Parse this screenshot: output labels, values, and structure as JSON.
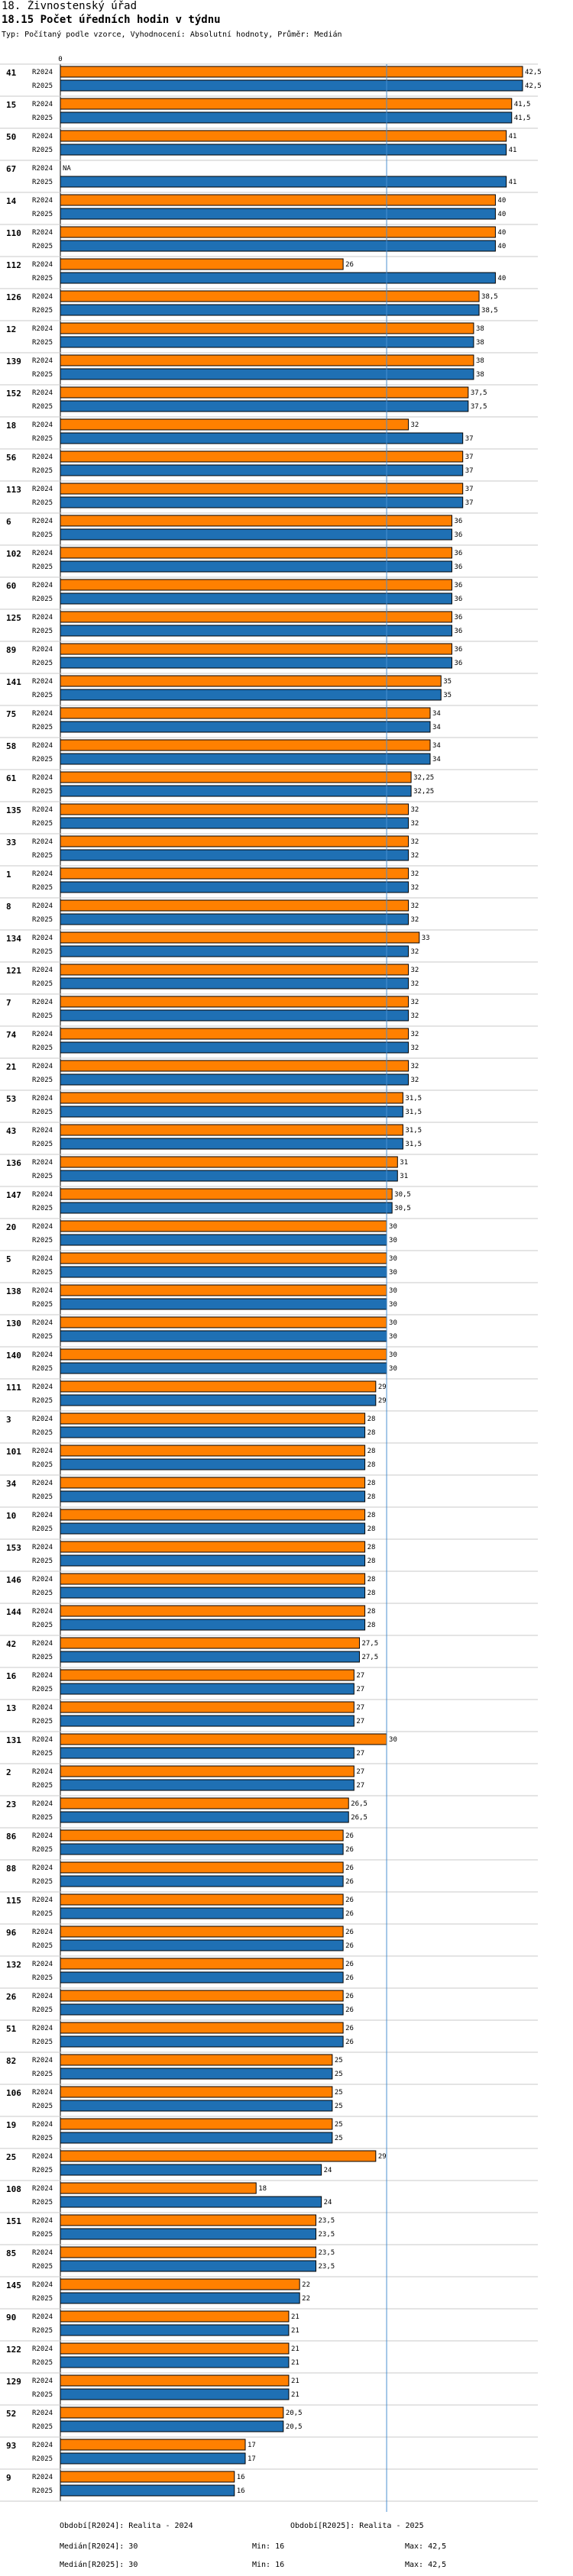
{
  "header": {
    "title": "18. Živnostenský úřad",
    "subtitle": "18.15 Počet úředních hodin v týdnu",
    "settings": "Typ: Počítaný podle vzorce, Vyhodnocení: Absolutní hodnoty, Průměr: Medián"
  },
  "chart_data": {
    "type": "bar",
    "orientation": "horizontal",
    "x_tick_labels": [
      "0"
    ],
    "xlim": [
      0,
      42.5
    ],
    "reference_line": {
      "label": "Medián",
      "value": 30
    },
    "series": [
      {
        "name": "R2024",
        "color": "#ff8000"
      },
      {
        "name": "R2025",
        "color": "#1f70b4"
      }
    ],
    "categories": [
      {
        "id": "41",
        "values": [
          42.5,
          42.5
        ],
        "labels": [
          "42,5",
          "42,5"
        ]
      },
      {
        "id": "15",
        "values": [
          41.5,
          41.5
        ],
        "labels": [
          "41,5",
          "41,5"
        ]
      },
      {
        "id": "50",
        "values": [
          41,
          41
        ],
        "labels": [
          "41",
          "41"
        ]
      },
      {
        "id": "67",
        "values": [
          null,
          41
        ],
        "labels": [
          "NA",
          "41"
        ]
      },
      {
        "id": "14",
        "values": [
          40,
          40
        ],
        "labels": [
          "40",
          "40"
        ]
      },
      {
        "id": "110",
        "values": [
          40,
          40
        ],
        "labels": [
          "40",
          "40"
        ]
      },
      {
        "id": "112",
        "values": [
          26,
          40
        ],
        "labels": [
          "26",
          "40"
        ]
      },
      {
        "id": "126",
        "values": [
          38.5,
          38.5
        ],
        "labels": [
          "38,5",
          "38,5"
        ]
      },
      {
        "id": "12",
        "values": [
          38,
          38
        ],
        "labels": [
          "38",
          "38"
        ]
      },
      {
        "id": "139",
        "values": [
          38,
          38
        ],
        "labels": [
          "38",
          "38"
        ]
      },
      {
        "id": "152",
        "values": [
          37.5,
          37.5
        ],
        "labels": [
          "37,5",
          "37,5"
        ]
      },
      {
        "id": "18",
        "values": [
          32,
          37
        ],
        "labels": [
          "32",
          "37"
        ]
      },
      {
        "id": "56",
        "values": [
          37,
          37
        ],
        "labels": [
          "37",
          "37"
        ]
      },
      {
        "id": "113",
        "values": [
          37,
          37
        ],
        "labels": [
          "37",
          "37"
        ]
      },
      {
        "id": "6",
        "values": [
          36,
          36
        ],
        "labels": [
          "36",
          "36"
        ]
      },
      {
        "id": "102",
        "values": [
          36,
          36
        ],
        "labels": [
          "36",
          "36"
        ]
      },
      {
        "id": "60",
        "values": [
          36,
          36
        ],
        "labels": [
          "36",
          "36"
        ]
      },
      {
        "id": "125",
        "values": [
          36,
          36
        ],
        "labels": [
          "36",
          "36"
        ]
      },
      {
        "id": "89",
        "values": [
          36,
          36
        ],
        "labels": [
          "36",
          "36"
        ]
      },
      {
        "id": "141",
        "values": [
          35,
          35
        ],
        "labels": [
          "35",
          "35"
        ]
      },
      {
        "id": "75",
        "values": [
          34,
          34
        ],
        "labels": [
          "34",
          "34"
        ]
      },
      {
        "id": "58",
        "values": [
          34,
          34
        ],
        "labels": [
          "34",
          "34"
        ]
      },
      {
        "id": "61",
        "values": [
          32.25,
          32.25
        ],
        "labels": [
          "32,25",
          "32,25"
        ]
      },
      {
        "id": "135",
        "values": [
          32,
          32
        ],
        "labels": [
          "32",
          "32"
        ]
      },
      {
        "id": "33",
        "values": [
          32,
          32
        ],
        "labels": [
          "32",
          "32"
        ]
      },
      {
        "id": "1",
        "values": [
          32,
          32
        ],
        "labels": [
          "32",
          "32"
        ]
      },
      {
        "id": "8",
        "values": [
          32,
          32
        ],
        "labels": [
          "32",
          "32"
        ]
      },
      {
        "id": "134",
        "values": [
          33,
          32
        ],
        "labels": [
          "33",
          "32"
        ]
      },
      {
        "id": "121",
        "values": [
          32,
          32
        ],
        "labels": [
          "32",
          "32"
        ]
      },
      {
        "id": "7",
        "values": [
          32,
          32
        ],
        "labels": [
          "32",
          "32"
        ]
      },
      {
        "id": "74",
        "values": [
          32,
          32
        ],
        "labels": [
          "32",
          "32"
        ]
      },
      {
        "id": "21",
        "values": [
          32,
          32
        ],
        "labels": [
          "32",
          "32"
        ]
      },
      {
        "id": "53",
        "values": [
          31.5,
          31.5
        ],
        "labels": [
          "31,5",
          "31,5"
        ]
      },
      {
        "id": "43",
        "values": [
          31.5,
          31.5
        ],
        "labels": [
          "31,5",
          "31,5"
        ]
      },
      {
        "id": "136",
        "values": [
          31,
          31
        ],
        "labels": [
          "31",
          "31"
        ]
      },
      {
        "id": "147",
        "values": [
          30.5,
          30.5
        ],
        "labels": [
          "30,5",
          "30,5"
        ]
      },
      {
        "id": "20",
        "values": [
          30,
          30
        ],
        "labels": [
          "30",
          "30"
        ]
      },
      {
        "id": "5",
        "values": [
          30,
          30
        ],
        "labels": [
          "30",
          "30"
        ]
      },
      {
        "id": "138",
        "values": [
          30,
          30
        ],
        "labels": [
          "30",
          "30"
        ]
      },
      {
        "id": "130",
        "values": [
          30,
          30
        ],
        "labels": [
          "30",
          "30"
        ]
      },
      {
        "id": "140",
        "values": [
          30,
          30
        ],
        "labels": [
          "30",
          "30"
        ]
      },
      {
        "id": "111",
        "values": [
          29,
          29
        ],
        "labels": [
          "29",
          "29"
        ]
      },
      {
        "id": "3",
        "values": [
          28,
          28
        ],
        "labels": [
          "28",
          "28"
        ]
      },
      {
        "id": "101",
        "values": [
          28,
          28
        ],
        "labels": [
          "28",
          "28"
        ]
      },
      {
        "id": "34",
        "values": [
          28,
          28
        ],
        "labels": [
          "28",
          "28"
        ]
      },
      {
        "id": "10",
        "values": [
          28,
          28
        ],
        "labels": [
          "28",
          "28"
        ]
      },
      {
        "id": "153",
        "values": [
          28,
          28
        ],
        "labels": [
          "28",
          "28"
        ]
      },
      {
        "id": "146",
        "values": [
          28,
          28
        ],
        "labels": [
          "28",
          "28"
        ]
      },
      {
        "id": "144",
        "values": [
          28,
          28
        ],
        "labels": [
          "28",
          "28"
        ]
      },
      {
        "id": "42",
        "values": [
          27.5,
          27.5
        ],
        "labels": [
          "27,5",
          "27,5"
        ]
      },
      {
        "id": "16",
        "values": [
          27,
          27
        ],
        "labels": [
          "27",
          "27"
        ]
      },
      {
        "id": "13",
        "values": [
          27,
          27
        ],
        "labels": [
          "27",
          "27"
        ]
      },
      {
        "id": "131",
        "values": [
          30,
          27
        ],
        "labels": [
          "30",
          "27"
        ]
      },
      {
        "id": "2",
        "values": [
          27,
          27
        ],
        "labels": [
          "27",
          "27"
        ]
      },
      {
        "id": "23",
        "values": [
          26.5,
          26.5
        ],
        "labels": [
          "26,5",
          "26,5"
        ]
      },
      {
        "id": "86",
        "values": [
          26,
          26
        ],
        "labels": [
          "26",
          "26"
        ]
      },
      {
        "id": "88",
        "values": [
          26,
          26
        ],
        "labels": [
          "26",
          "26"
        ]
      },
      {
        "id": "115",
        "values": [
          26,
          26
        ],
        "labels": [
          "26",
          "26"
        ]
      },
      {
        "id": "96",
        "values": [
          26,
          26
        ],
        "labels": [
          "26",
          "26"
        ]
      },
      {
        "id": "132",
        "values": [
          26,
          26
        ],
        "labels": [
          "26",
          "26"
        ]
      },
      {
        "id": "26",
        "values": [
          26,
          26
        ],
        "labels": [
          "26",
          "26"
        ]
      },
      {
        "id": "51",
        "values": [
          26,
          26
        ],
        "labels": [
          "26",
          "26"
        ]
      },
      {
        "id": "82",
        "values": [
          25,
          25
        ],
        "labels": [
          "25",
          "25"
        ]
      },
      {
        "id": "106",
        "values": [
          25,
          25
        ],
        "labels": [
          "25",
          "25"
        ]
      },
      {
        "id": "19",
        "values": [
          25,
          25
        ],
        "labels": [
          "25",
          "25"
        ]
      },
      {
        "id": "25",
        "values": [
          29,
          24
        ],
        "labels": [
          "29",
          "24"
        ]
      },
      {
        "id": "108",
        "values": [
          18,
          24
        ],
        "labels": [
          "18",
          "24"
        ]
      },
      {
        "id": "151",
        "values": [
          23.5,
          23.5
        ],
        "labels": [
          "23,5",
          "23,5"
        ]
      },
      {
        "id": "85",
        "values": [
          23.5,
          23.5
        ],
        "labels": [
          "23,5",
          "23,5"
        ]
      },
      {
        "id": "145",
        "values": [
          22,
          22
        ],
        "labels": [
          "22",
          "22"
        ]
      },
      {
        "id": "90",
        "values": [
          21,
          21
        ],
        "labels": [
          "21",
          "21"
        ]
      },
      {
        "id": "122",
        "values": [
          21,
          21
        ],
        "labels": [
          "21",
          "21"
        ]
      },
      {
        "id": "129",
        "values": [
          21,
          21
        ],
        "labels": [
          "21",
          "21"
        ]
      },
      {
        "id": "52",
        "values": [
          20.5,
          20.5
        ],
        "labels": [
          "20,5",
          "20,5"
        ]
      },
      {
        "id": "93",
        "values": [
          17,
          17
        ],
        "labels": [
          "17",
          "17"
        ]
      },
      {
        "id": "9",
        "values": [
          16,
          16
        ],
        "labels": [
          "16",
          "16"
        ]
      }
    ]
  },
  "footer": {
    "period_2024": "Období[R2024]: Realita - 2024",
    "period_2025": "Období[R2025]: Realita - 2025",
    "median_2024": "Medián[R2024]: 30",
    "median_2025": "Medián[R2025]: 30",
    "min_2024": "Min: 16",
    "min_2025": "Min: 16",
    "max_2024": "Max: 42,5",
    "max_2025": "Max: 42,5"
  }
}
